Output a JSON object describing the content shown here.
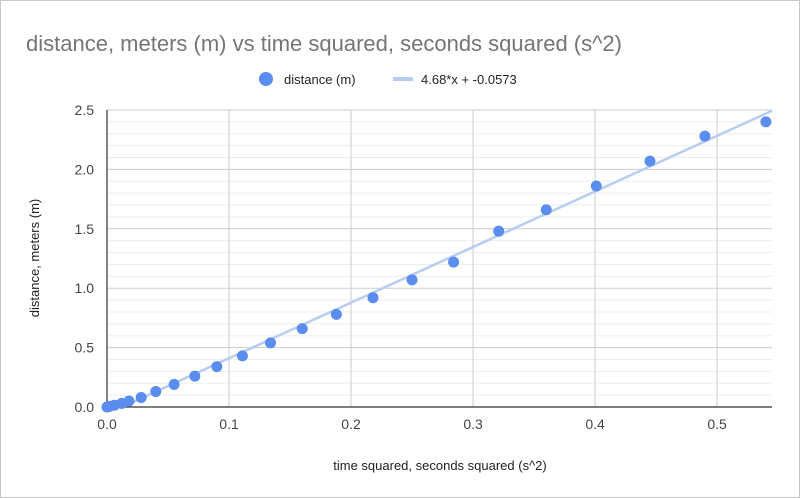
{
  "chart_data": {
    "type": "scatter",
    "title": "distance, meters (m) vs time squared, seconds squared (s^2)",
    "xlabel": "time squared, seconds squared (s^2)",
    "ylabel": "distance, meters (m)",
    "xlim": [
      0,
      0.545
    ],
    "ylim": [
      0,
      2.5
    ],
    "x_ticks": [
      "0.0",
      "0.1",
      "0.2",
      "0.3",
      "0.4",
      "0.5"
    ],
    "x_tick_values": [
      0,
      0.1,
      0.2,
      0.3,
      0.4,
      0.5
    ],
    "y_ticks": [
      "0.0",
      "0.5",
      "1.0",
      "1.5",
      "2.0",
      "2.5"
    ],
    "y_tick_values": [
      0,
      0.5,
      1.0,
      1.5,
      2.0,
      2.5
    ],
    "grid": true,
    "legend_position": "top",
    "series": [
      {
        "name": "distance (m)",
        "color": "#5b8def",
        "x": [
          0.0,
          0.002,
          0.006,
          0.012,
          0.018,
          0.028,
          0.04,
          0.055,
          0.072,
          0.09,
          0.111,
          0.134,
          0.16,
          0.188,
          0.218,
          0.25,
          0.284,
          0.321,
          0.36,
          0.401,
          0.445,
          0.49,
          0.54
        ],
        "y": [
          0.0,
          0.005,
          0.015,
          0.03,
          0.05,
          0.08,
          0.13,
          0.19,
          0.26,
          0.34,
          0.43,
          0.54,
          0.66,
          0.78,
          0.92,
          1.07,
          1.22,
          1.48,
          1.66,
          1.86,
          2.07,
          2.28,
          2.4
        ]
      }
    ],
    "trendline": {
      "label": "4.68*x + -0.0573",
      "slope": 4.68,
      "intercept": -0.0573,
      "color": "#b7cdf0"
    }
  }
}
